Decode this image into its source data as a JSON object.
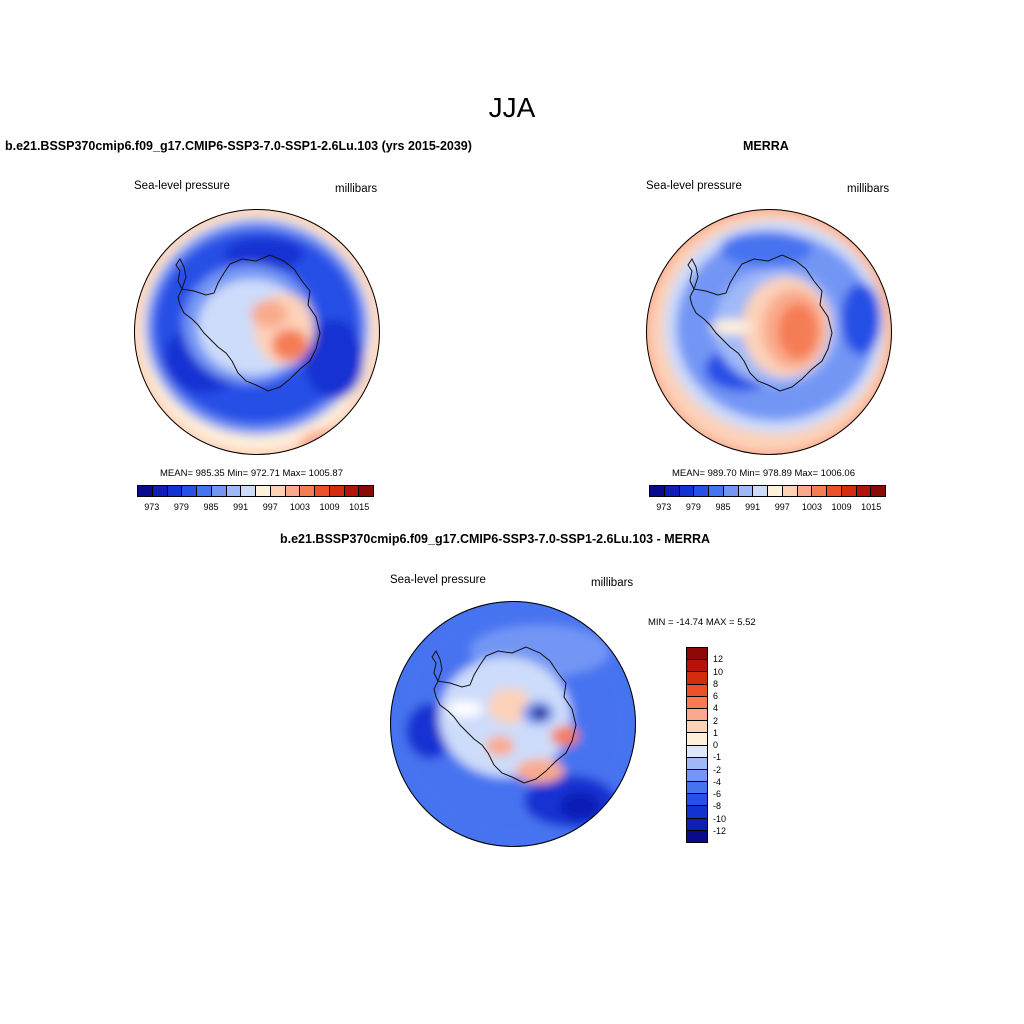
{
  "season": "JJA",
  "panel_model": {
    "title": "b.e21.BSSP370cmip6.f09_g17.CMIP6-SSP3-7.0-SSP1-2.6Lu.103 (yrs 2015-2039)",
    "left_label": "Sea-level pressure",
    "right_label": "millibars",
    "stats": "MEAN= 985.35  Min= 972.71  Max= 1005.87"
  },
  "panel_obs": {
    "title": "MERRA",
    "left_label": "Sea-level pressure",
    "right_label": "millibars",
    "stats": "MEAN= 989.70  Min= 978.89  Max= 1006.06"
  },
  "panel_diff": {
    "title": "b.e21.BSSP370cmip6.f09_g17.CMIP6-SSP3-7.0-SSP1-2.6Lu.103 - MERRA",
    "left_label": "Sea-level pressure",
    "right_label": "millibars",
    "stats": "MIN = -14.74 MAX =   5.52"
  },
  "abs_colorbar": {
    "colors": [
      "#0a0a8c",
      "#0f1eb4",
      "#1432d2",
      "#2850e6",
      "#4673f0",
      "#7396f5",
      "#a0b9f8",
      "#cddcfa",
      "#fff0dc",
      "#fcd2b9",
      "#faaa8c",
      "#f57d55",
      "#eb5028",
      "#d22d0f",
      "#b4140a",
      "#8c0a05"
    ],
    "ticks": [
      "973",
      "979",
      "985",
      "991",
      "997",
      "1003",
      "1009",
      "1015"
    ]
  },
  "diff_colorbar": {
    "colors": [
      "#8c0a05",
      "#b4140a",
      "#d22d0f",
      "#eb5028",
      "#f57d55",
      "#faaa8c",
      "#fcd2b9",
      "#fff0dc",
      "#dce8fa",
      "#a0b9f8",
      "#7396f5",
      "#4673f0",
      "#2850e6",
      "#1432d2",
      "#0f1eb4",
      "#0a0a8c"
    ],
    "ticks": [
      "12",
      "10",
      "8",
      "6",
      "4",
      "2",
      "1",
      "0",
      "-1",
      "-2",
      "-4",
      "-6",
      "-8",
      "-10",
      "-12"
    ]
  }
}
